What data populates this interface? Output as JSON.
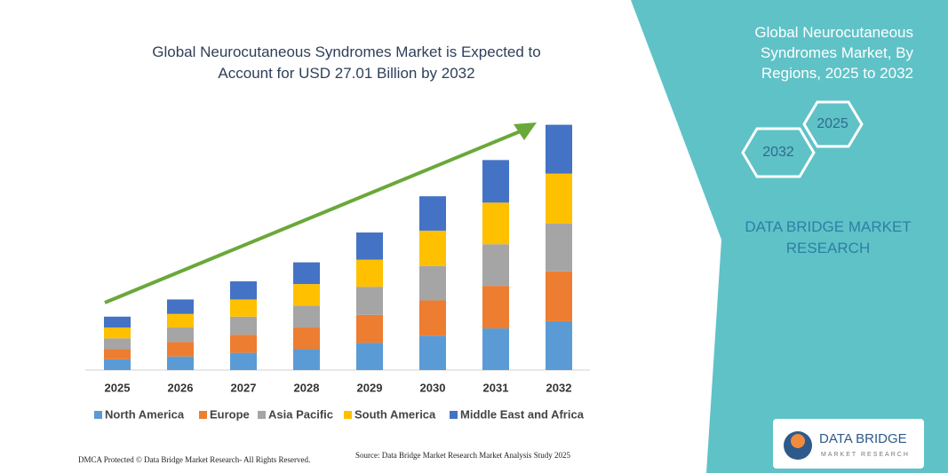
{
  "chart_data": {
    "type": "stacked_bar",
    "title": "Global Neurocutaneous Syndromes Market is Expected to Account for USD 27.01 Billion by 2032",
    "categories": [
      "2025",
      "2026",
      "2027",
      "2028",
      "2029",
      "2030",
      "2031",
      "2032"
    ],
    "series": [
      {
        "name": "North America",
        "color": "#5b9bd5",
        "values": [
          1.2,
          1.5,
          1.9,
          2.3,
          3.0,
          3.8,
          4.6,
          5.4
        ]
      },
      {
        "name": "Europe",
        "color": "#ed7d31",
        "values": [
          1.1,
          1.6,
          2.0,
          2.4,
          3.1,
          3.9,
          4.7,
          5.5
        ]
      },
      {
        "name": "Asia Pacific",
        "color": "#a5a5a5",
        "values": [
          1.2,
          1.6,
          2.0,
          2.4,
          3.1,
          3.8,
          4.6,
          5.3
        ]
      },
      {
        "name": "South America",
        "color": "#ffc000",
        "values": [
          1.2,
          1.5,
          1.9,
          2.4,
          3.0,
          3.9,
          4.6,
          5.5
        ]
      },
      {
        "name": "Middle East and Africa",
        "color": "#4472c4",
        "values": [
          1.2,
          1.6,
          2.0,
          2.4,
          3.0,
          3.8,
          4.7,
          5.4
        ]
      }
    ]
  },
  "panel": {
    "title": "Global Neurocutaneous Syndromes Market, By Regions, 2025 to 2032",
    "hex_left": "2032",
    "hex_right": "2025",
    "brand": "DATA BRIDGE MARKET RESEARCH"
  },
  "logo": {
    "name": "DATA BRIDGE",
    "tagline": "MARKET RESEARCH"
  },
  "footer": {
    "copyright": "DMCA Protected © Data Bridge Market Research- All Rights Reserved.",
    "source": "Source: Data Bridge Market Research Market Analysis Study 2025"
  }
}
